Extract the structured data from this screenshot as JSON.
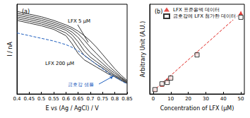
{
  "chart_data": [
    {
      "type": "line",
      "title": "(a)",
      "x_label": "E vs (Ag / AgCl) / V",
      "y_label": "I / nA",
      "x": [
        0.4,
        0.45,
        0.5,
        0.55,
        0.6,
        0.625,
        0.65,
        0.675,
        0.7,
        0.725,
        0.75,
        0.775,
        0.8,
        0.825,
        0.85
      ],
      "series": [
        {
          "color": "#333333",
          "line_style": "solid",
          "values": [
            9.2,
            8.9,
            8.6,
            8.2,
            7.7,
            7.4,
            7.0,
            6.5,
            5.9,
            5.2,
            4.4,
            3.6,
            2.8,
            2.1,
            1.5
          ]
        },
        {
          "color": "#333333",
          "line_style": "solid",
          "values": [
            9.0,
            8.7,
            8.4,
            8.0,
            7.5,
            7.2,
            6.7,
            6.0,
            5.2,
            4.5,
            3.8,
            3.1,
            2.5,
            1.9,
            1.4
          ]
        },
        {
          "color": "#333333",
          "line_style": "solid",
          "values": [
            8.8,
            8.5,
            8.2,
            7.8,
            7.3,
            6.9,
            6.3,
            5.4,
            4.6,
            4.0,
            3.4,
            2.8,
            2.3,
            1.8,
            1.3
          ]
        },
        {
          "color": "#333333",
          "line_style": "solid",
          "values": [
            8.6,
            8.3,
            8.0,
            7.6,
            7.1,
            6.6,
            5.8,
            4.8,
            4.1,
            3.6,
            3.1,
            2.6,
            2.1,
            1.7,
            1.3
          ]
        },
        {
          "color": "#333333",
          "line_style": "solid",
          "values": [
            8.4,
            8.1,
            7.8,
            7.4,
            6.8,
            6.2,
            5.2,
            4.3,
            3.8,
            3.3,
            2.9,
            2.4,
            2.0,
            1.6,
            1.2
          ]
        },
        {
          "color": "#333333",
          "line_style": "solid",
          "values": [
            8.2,
            7.9,
            7.6,
            7.2,
            6.5,
            5.6,
            4.5,
            3.8,
            3.4,
            3.0,
            2.6,
            2.2,
            1.9,
            1.5,
            1.2
          ]
        },
        {
          "color": "#1f5fbf",
          "line_style": "dashed",
          "values": [
            6.8,
            6.5,
            6.2,
            5.9,
            5.5,
            5.2,
            4.8,
            4.3,
            3.8,
            3.3,
            2.8,
            2.3,
            1.9,
            1.5,
            1.1
          ]
        }
      ],
      "xlim": [
        0.4,
        0.85
      ],
      "xticks": [
        0.4,
        0.45,
        0.5,
        0.55,
        0.6,
        0.65,
        0.7,
        0.75,
        0.8,
        0.85
      ],
      "ylim": [
        0,
        10
      ],
      "tick_labels": "x",
      "grid": false,
      "annotations": [
        "LFX 5 μM",
        "LFX 200 μM",
        "금호강 샘플"
      ]
    },
    {
      "type": "scatter",
      "title": "(b)",
      "x_label": "Concentration of LFX (μM)",
      "y_label": "Arbitrary Unit (A.U.)",
      "series": [
        {
          "name": "LFX 표준용액 데이터",
          "color": "#e0201b",
          "marker": "triangle",
          "x": [
            1,
            5,
            8,
            10,
            25,
            50
          ],
          "values": [
            0.1,
            0.45,
            0.75,
            0.95,
            2.6,
            5.4
          ]
        },
        {
          "name": "금호강에 LFX 첨가한 데이터",
          "color": "#000000",
          "marker": "square",
          "x": [
            1,
            5,
            8,
            10,
            25,
            50
          ],
          "values": [
            0.1,
            0.5,
            0.6,
            0.9,
            2.5,
            5.1
          ]
        },
        {
          "type": "line",
          "color": "#e0201b",
          "line_style": "dashed",
          "x": [
            0,
            50
          ],
          "values": [
            0,
            5.4
          ]
        }
      ],
      "xlim": [
        -2,
        52
      ],
      "xticks": [
        0,
        10,
        20,
        30,
        40,
        50
      ],
      "ylim": [
        -0.2,
        6
      ],
      "tick_labels": "x",
      "grid": false,
      "legend": "top-left"
    }
  ]
}
